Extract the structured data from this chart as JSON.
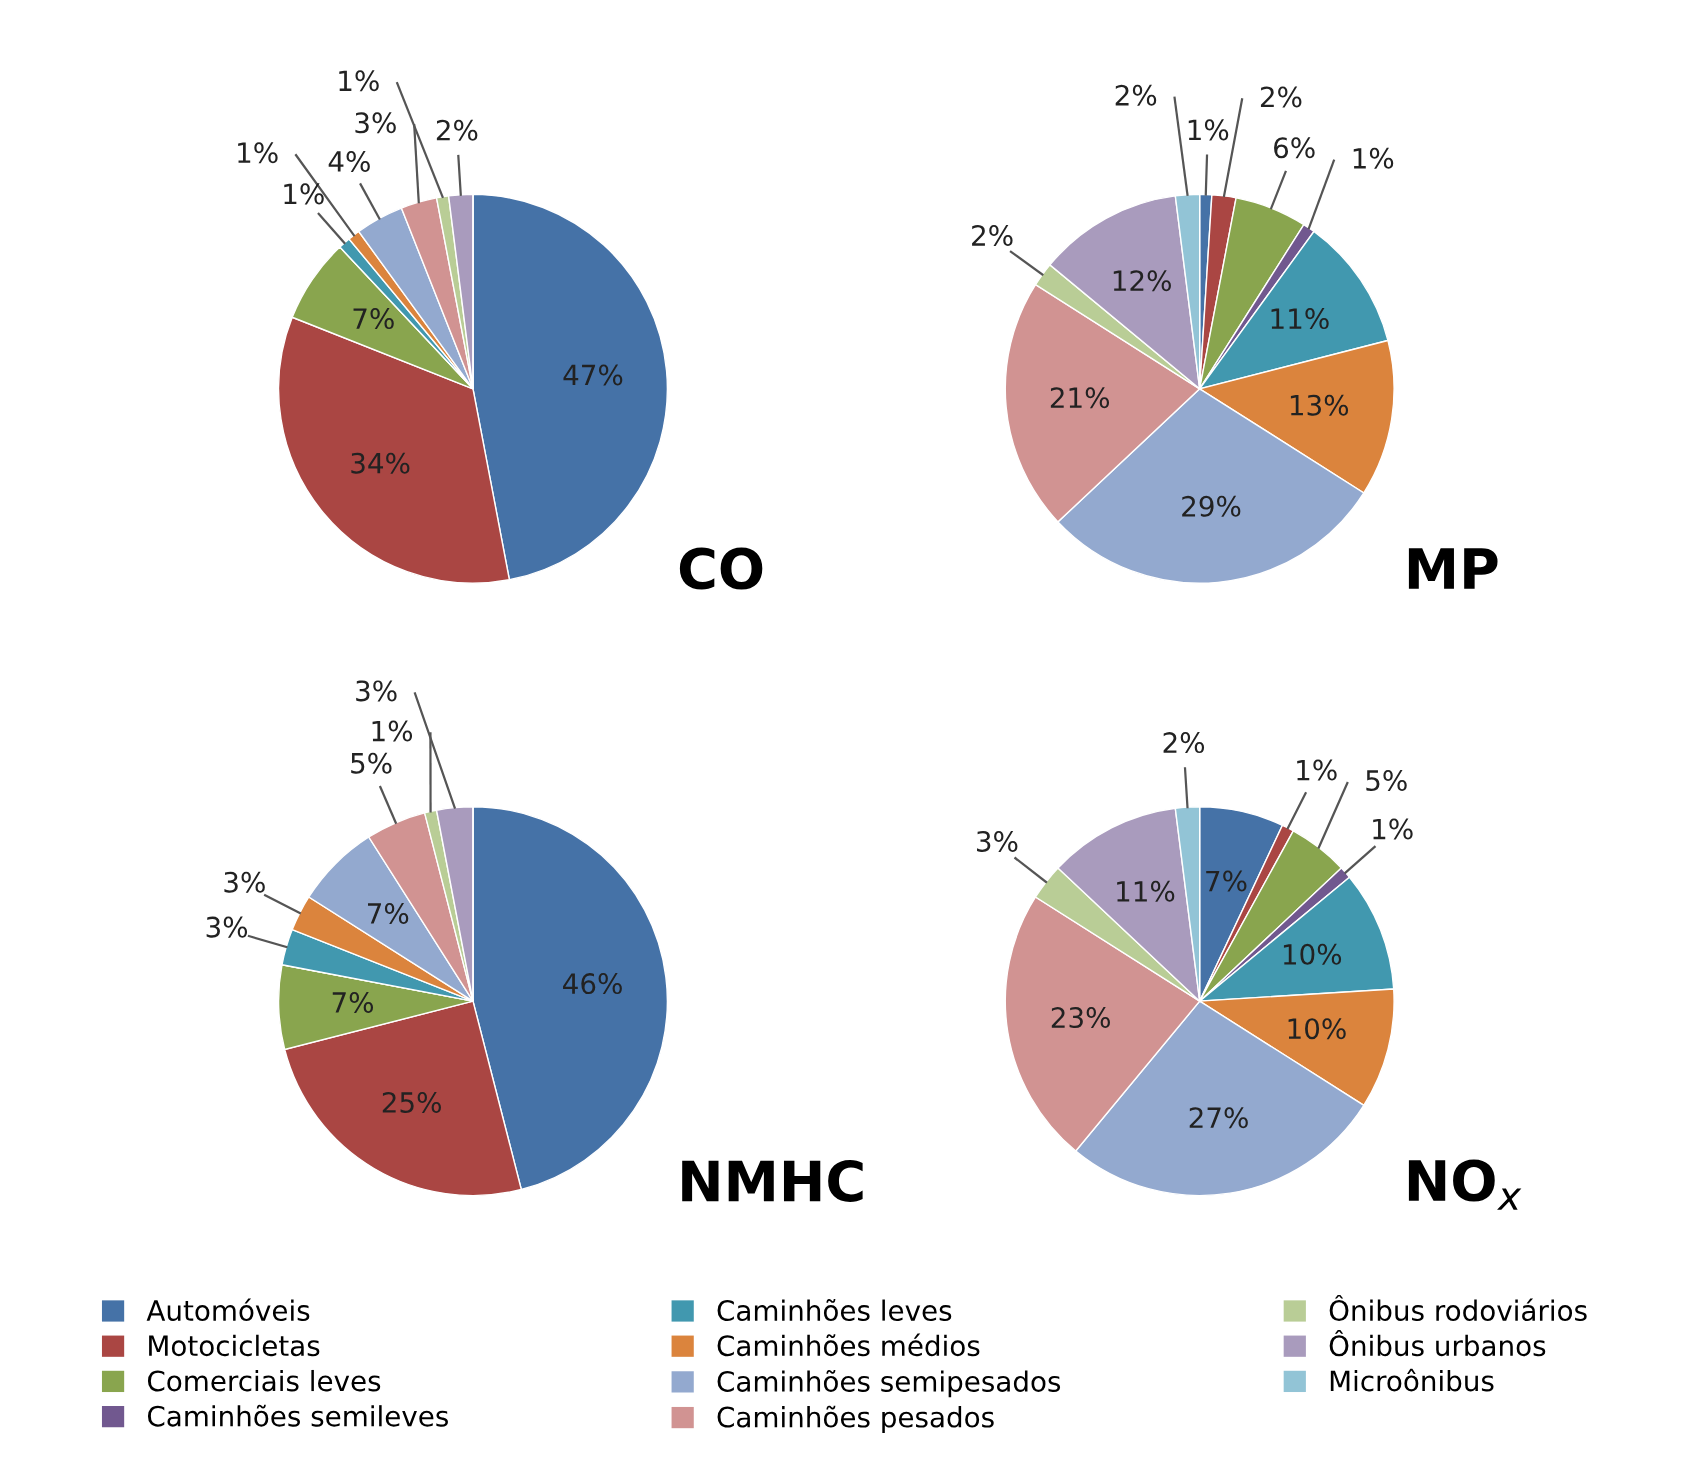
{
  "chart_data": [
    {
      "type": "pie",
      "title": "CO",
      "categories": [
        "Automóveis",
        "Motocicletas",
        "Comerciais leves",
        "Caminhões semileves",
        "Caminhões leves",
        "Caminhões médios",
        "Caminhões semipesados",
        "Caminhões pesados",
        "Ônibus rodoviários",
        "Ônibus urbanos",
        "Microônibus"
      ],
      "values": [
        47,
        34,
        7,
        0,
        1,
        1,
        4,
        3,
        1,
        2,
        0
      ],
      "value_labels": [
        "47%",
        "34%",
        "7%",
        null,
        "1%",
        "1%",
        "4%",
        "3%",
        "1%",
        "2%",
        null
      ],
      "legend": "bottom",
      "colors": [
        "#4572a7",
        "#aa4643",
        "#89a54e",
        "#71588f",
        "#4198af",
        "#db843d",
        "#93a9cf",
        "#d19392",
        "#b9cd96",
        "#a99bbd",
        "#92c4d6"
      ]
    },
    {
      "type": "pie",
      "title": "MP",
      "categories": [
        null,
        null,
        null,
        null,
        null,
        null,
        null,
        null,
        null,
        null,
        null
      ],
      "values": [
        1,
        2,
        6,
        1,
        11,
        13,
        29,
        21,
        2,
        12,
        2
      ],
      "value_labels": [
        "1%",
        "2%",
        "6%",
        "1%",
        "11%",
        "13%",
        "29%",
        "21%",
        "2%",
        "12%",
        "2%"
      ],
      "colors": [
        "#4572a7",
        "#aa4643",
        "#89a54e",
        "#71588f",
        "#4198af",
        "#db843d",
        "#93a9cf",
        "#d19392",
        "#b9cd96",
        "#a99bbd",
        "#92c4d6"
      ]
    },
    {
      "type": "pie",
      "title": "NMHC",
      "categories": [
        null,
        null,
        null,
        null,
        null,
        null,
        null,
        null,
        null,
        null,
        null
      ],
      "values": [
        46,
        25,
        7,
        0,
        3,
        3,
        7,
        5,
        1,
        3,
        0
      ],
      "value_labels": [
        "46%",
        "25%",
        "7%",
        null,
        "3%",
        "3%",
        "7%",
        "5%",
        "1%",
        "3%",
        null
      ],
      "colors": [
        "#4572a7",
        "#aa4643",
        "#89a54e",
        "#71588f",
        "#4198af",
        "#db843d",
        "#93a9cf",
        "#d19392",
        "#b9cd96",
        "#a99bbd",
        "#92c4d6"
      ]
    },
    {
      "type": "pie",
      "title": "NO$_{x}$",
      "categories": [
        null,
        null,
        null,
        null,
        null,
        null,
        null,
        null,
        null,
        null,
        null
      ],
      "values": [
        7,
        1,
        5,
        1,
        10,
        10,
        27,
        23,
        3,
        11,
        2
      ],
      "value_labels": [
        "7%",
        "1%",
        "5%",
        "1%",
        "10%",
        "10%",
        "27%",
        "23%",
        "3%",
        "11%",
        "2%"
      ],
      "colors": [
        "#4572a7",
        "#aa4643",
        "#89a54e",
        "#71588f",
        "#4198af",
        "#db843d",
        "#93a9cf",
        "#d19392",
        "#b9cd96",
        "#a99bbd",
        "#92c4d6"
      ]
    }
  ]
}
